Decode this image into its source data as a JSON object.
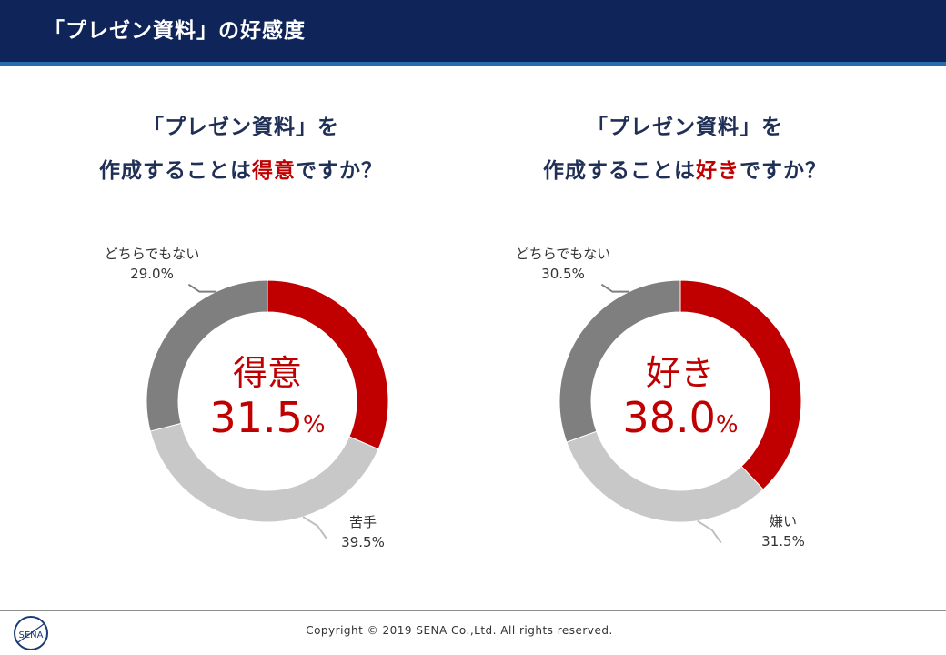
{
  "header": {
    "title": "「プレゼン資料」の好感度"
  },
  "charts": [
    {
      "question_line1": "「プレゼン資料」を",
      "question_pre": "作成することは",
      "question_highlight": "得意",
      "question_post": "ですか？",
      "center_word": "得意",
      "center_value": "31.5",
      "center_unit": "%",
      "labels": {
        "neutral_name": "どちらでもない",
        "neutral_value": "29.0%",
        "negative_name": "苦手",
        "negative_value": "39.5%"
      }
    },
    {
      "question_line1": "「プレゼン資料」を",
      "question_pre": "作成することは",
      "question_highlight": "好き",
      "question_post": "ですか？",
      "center_word": "好き",
      "center_value": "38.0",
      "center_unit": "%",
      "labels": {
        "neutral_name": "どちらでもない",
        "neutral_value": "30.5%",
        "negative_name": "嫌い",
        "negative_value": "31.5%"
      }
    }
  ],
  "chart_data": [
    {
      "type": "pie",
      "categories": [
        "得意",
        "苦手",
        "どちらでもない"
      ],
      "values": [
        31.5,
        39.5,
        29.0
      ],
      "colors": [
        "#c00000",
        "#c8c8c8",
        "#7f7f7f"
      ],
      "title": "「プレゼン資料」を作成することは得意ですか？"
    },
    {
      "type": "pie",
      "categories": [
        "好き",
        "嫌い",
        "どちらでもない"
      ],
      "values": [
        38.0,
        31.5,
        30.5
      ],
      "colors": [
        "#c00000",
        "#c8c8c8",
        "#7f7f7f"
      ],
      "title": "「プレゼン資料」を作成することは好きですか？"
    }
  ],
  "footer": {
    "copyright": "Copyright © 2019 SENA Co.,Ltd. All rights reserved.",
    "logo_text": "SENA"
  }
}
